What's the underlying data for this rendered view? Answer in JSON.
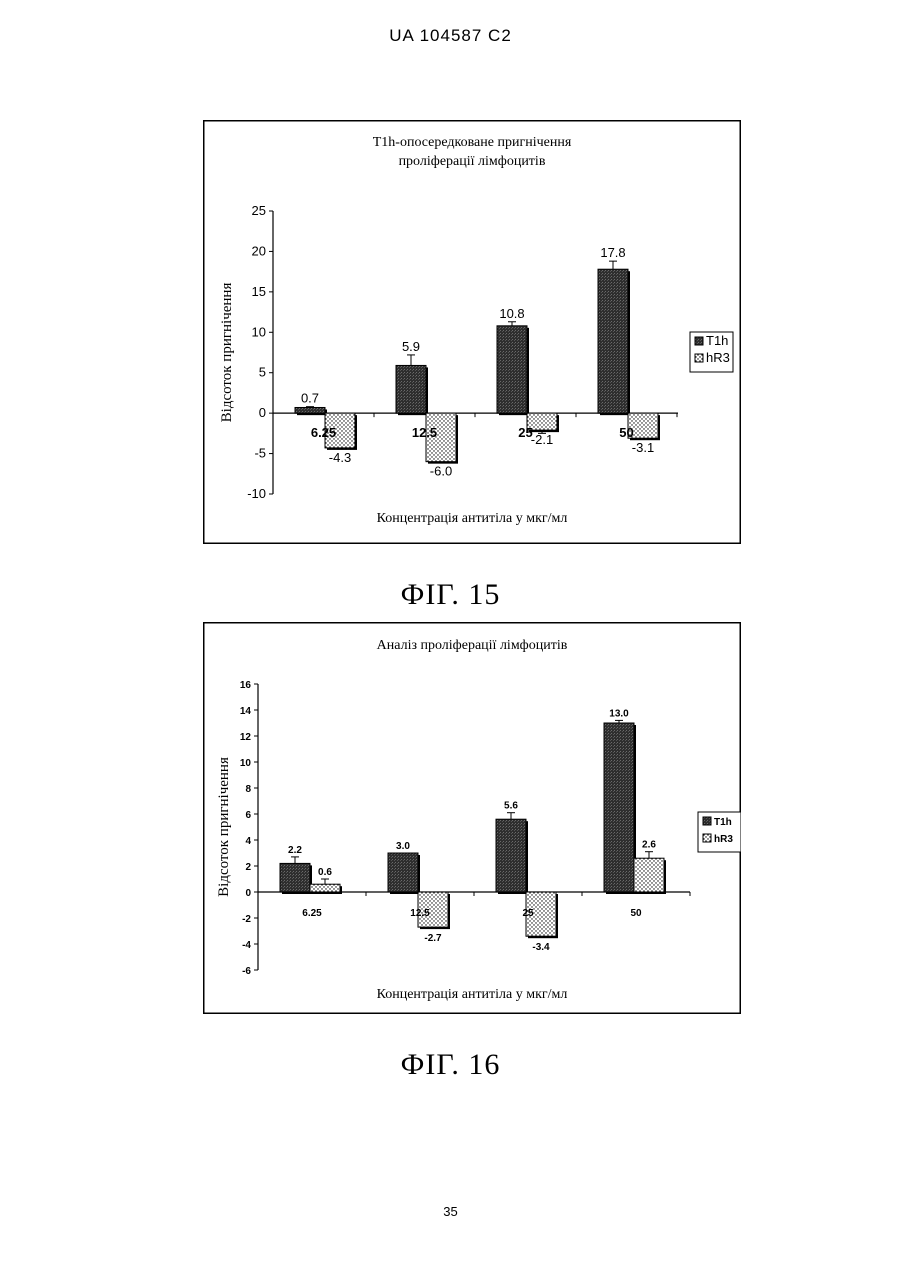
{
  "header": {
    "doc_number": "UA   104587   C2"
  },
  "figures": [
    {
      "label": "ФІГ. 15"
    },
    {
      "label": "ФІГ. 16"
    }
  ],
  "page_number": "35",
  "chart_data": [
    {
      "type": "bar",
      "title_lines": [
        "T1h-опосередковане пригнічення",
        "проліферації лімфоцитів"
      ],
      "xlabel": "Концентрація антитіла у мкг/мл",
      "ylabel": "Відсоток пригнічення",
      "categories": [
        "6.25",
        "12.5",
        "25",
        "50"
      ],
      "ylim": [
        -10,
        25
      ],
      "yticks": [
        -10,
        -5,
        0,
        5,
        10,
        15,
        20,
        25
      ],
      "series": [
        {
          "name": "T1h",
          "values": [
            0.7,
            5.9,
            10.8,
            17.8
          ],
          "labels": [
            "0.7",
            "5.9",
            "10.8",
            "17.8"
          ],
          "err": [
            0.1,
            1.3,
            0.5,
            1.0
          ]
        },
        {
          "name": "hR3",
          "values": [
            -4.3,
            -6.0,
            -2.1,
            -3.1
          ],
          "labels": [
            "-4.3",
            "-6.0",
            "-2.1",
            "-3.1"
          ],
          "err": [
            0,
            0,
            0.4,
            0
          ]
        }
      ],
      "legend_position": "right",
      "grid": false
    },
    {
      "type": "bar",
      "title_lines": [
        "Аналіз проліферації лімфоцитів"
      ],
      "xlabel": "Концентрація антитіла у мкг/мл",
      "ylabel": "Відсоток пригнічення",
      "categories": [
        "6.25",
        "12.5",
        "25",
        "50"
      ],
      "ylim": [
        -6,
        16
      ],
      "yticks": [
        -6,
        -4,
        -2,
        0,
        2,
        4,
        6,
        8,
        10,
        12,
        14,
        16
      ],
      "series": [
        {
          "name": "T1h",
          "values": [
            2.2,
            3.0,
            5.6,
            13.0
          ],
          "labels": [
            "2.2",
            "3.0",
            "5.6",
            "13.0"
          ],
          "err": [
            0.5,
            0,
            0.5,
            0.2
          ]
        },
        {
          "name": "hR3",
          "values": [
            0.6,
            -2.7,
            -3.4,
            2.6
          ],
          "labels": [
            "0.6",
            "-2.7",
            "-3.4",
            "2.6"
          ],
          "err": [
            0.4,
            0,
            0,
            0.5
          ]
        }
      ],
      "legend_position": "right",
      "grid": false
    }
  ]
}
